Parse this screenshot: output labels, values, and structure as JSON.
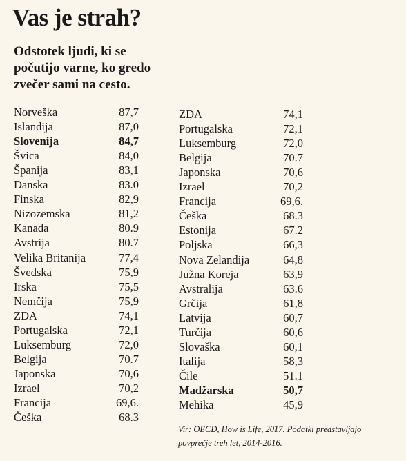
{
  "header": {
    "title": "Vas je strah?",
    "subtitle": [
      "Odstotek ljudi, ki se",
      "počutijo varne, ko gredo",
      "zvečer sami na cesto."
    ]
  },
  "table": {
    "columns": [
      [
        {
          "name": "Norveška",
          "value": "87,7"
        },
        {
          "name": "Islandija",
          "value": "87,0"
        },
        {
          "name": "Slovenija",
          "value": "84,7",
          "bold": true
        },
        {
          "name": "Švica",
          "value": "84,0"
        },
        {
          "name": "Španija",
          "value": "83,1"
        },
        {
          "name": "Danska",
          "value": "83.0"
        },
        {
          "name": "Finska",
          "value": "82,9"
        },
        {
          "name": "Nizozemska",
          "value": "81,2"
        },
        {
          "name": "Kanada",
          "value": "80.9"
        },
        {
          "name": "Avstrija",
          "value": "80.7"
        },
        {
          "name": "Velika Britanija",
          "value": "77,4"
        },
        {
          "name": "Švedska",
          "value": "75,9"
        },
        {
          "name": "Irska",
          "value": "75,5"
        },
        {
          "name": "Nemčija",
          "value": "75,9"
        },
        {
          "name": "ZDA",
          "value": "74,1"
        },
        {
          "name": "Portugalska",
          "value": "72,1"
        },
        {
          "name": "Luksemburg",
          "value": "72,0"
        },
        {
          "name": "Belgija",
          "value": "70.7"
        },
        {
          "name": "Japonska",
          "value": "70,6"
        },
        {
          "name": "Izrael",
          "value": "70,2"
        },
        {
          "name": "Francija",
          "value": "69,6."
        },
        {
          "name": "Češka",
          "value": "68.3"
        }
      ],
      [
        {
          "name": "ZDA",
          "value": "74,1"
        },
        {
          "name": "Portugalska",
          "value": "72,1"
        },
        {
          "name": "Luksemburg",
          "value": "72,0"
        },
        {
          "name": "Belgija",
          "value": "70.7"
        },
        {
          "name": "Japonska",
          "value": "70,6"
        },
        {
          "name": "Izrael",
          "value": "70,2"
        },
        {
          "name": "Francija",
          "value": "69,6."
        },
        {
          "name": "Češka",
          "value": "68.3"
        },
        {
          "name": "Estonija",
          "value": "67.2"
        },
        {
          "name": "Poljska",
          "value": "66,3"
        },
        {
          "name": "Nova Zelandija",
          "value": "64,8"
        },
        {
          "name": "Južna Koreja",
          "value": "63,9"
        },
        {
          "name": "Avstralija",
          "value": "63.6"
        },
        {
          "name": "Grčija",
          "value": "61,8"
        },
        {
          "name": "Latvija",
          "value": "60,7"
        },
        {
          "name": "Turčija",
          "value": "60,6"
        },
        {
          "name": "Slovaška",
          "value": "60,1"
        },
        {
          "name": "Italija",
          "value": "58,3"
        },
        {
          "name": "Čile",
          "value": "51.1"
        },
        {
          "name": "Madžarska",
          "value": "50,7",
          "bold": true
        },
        {
          "name": "Mehika",
          "value": "45,9"
        }
      ]
    ]
  },
  "footer": {
    "note": [
      "Vir: OECD, How is Life, 2017. Podatki predstavljajo",
      "povprečje treh let, 2014-2016."
    ]
  }
}
